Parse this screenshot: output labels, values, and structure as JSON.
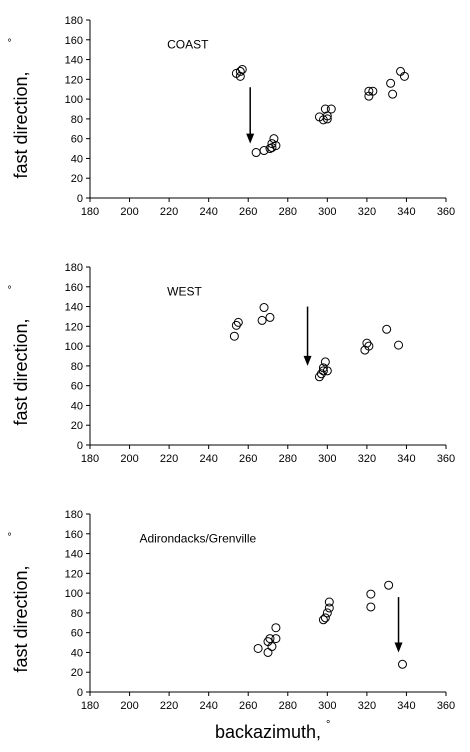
{
  "chart_data": [
    {
      "type": "scatter",
      "title": "",
      "panel_label": "COAST",
      "ylabel": "fast direction,",
      "ylabel_unit": "°",
      "xlabel": "",
      "xlim": [
        180,
        360
      ],
      "ylim": [
        0,
        180
      ],
      "x_ticks": [
        180,
        200,
        220,
        240,
        260,
        280,
        300,
        320,
        340,
        360
      ],
      "y_ticks": [
        0,
        20,
        40,
        60,
        80,
        100,
        120,
        140,
        160,
        180
      ],
      "points": [
        [
          254,
          126
        ],
        [
          256,
          128
        ],
        [
          257,
          130
        ],
        [
          256,
          123
        ],
        [
          264,
          46
        ],
        [
          268,
          48
        ],
        [
          271,
          50
        ],
        [
          272,
          55
        ],
        [
          273,
          60
        ],
        [
          274,
          53
        ],
        [
          272,
          51
        ],
        [
          296,
          82
        ],
        [
          298,
          79
        ],
        [
          299,
          90
        ],
        [
          300,
          83
        ],
        [
          302,
          90
        ],
        [
          300,
          80
        ],
        [
          321,
          103
        ],
        [
          321,
          108
        ],
        [
          323,
          108
        ],
        [
          332,
          116
        ],
        [
          333,
          105
        ],
        [
          337,
          128
        ],
        [
          339,
          123
        ]
      ],
      "arrow": {
        "x": 261,
        "y_from": 112,
        "y_to": 55
      }
    },
    {
      "type": "scatter",
      "title": "",
      "panel_label": "WEST",
      "ylabel": "fast direction,",
      "ylabel_unit": "°",
      "xlabel": "",
      "xlim": [
        180,
        360
      ],
      "ylim": [
        0,
        180
      ],
      "x_ticks": [
        180,
        200,
        220,
        240,
        260,
        280,
        300,
        320,
        340,
        360
      ],
      "y_ticks": [
        0,
        20,
        40,
        60,
        80,
        100,
        120,
        140,
        160,
        180
      ],
      "points": [
        [
          253,
          110
        ],
        [
          254,
          121
        ],
        [
          255,
          124
        ],
        [
          267,
          126
        ],
        [
          268,
          139
        ],
        [
          271,
          129
        ],
        [
          296,
          69
        ],
        [
          297,
          72
        ],
        [
          298,
          75
        ],
        [
          299,
          84
        ],
        [
          300,
          75
        ],
        [
          298,
          78
        ],
        [
          319,
          96
        ],
        [
          320,
          103
        ],
        [
          321,
          100
        ],
        [
          330,
          117
        ],
        [
          336,
          101
        ]
      ],
      "arrow": {
        "x": 290,
        "y_from": 140,
        "y_to": 80
      }
    },
    {
      "type": "scatter",
      "title": "",
      "panel_label": "Adirondacks/Grenville",
      "ylabel": "fast direction,",
      "ylabel_unit": "°",
      "xlabel": "backazimuth,",
      "xlabel_unit": "°",
      "xlim": [
        180,
        360
      ],
      "ylim": [
        0,
        180
      ],
      "x_ticks": [
        180,
        200,
        220,
        240,
        260,
        280,
        300,
        320,
        340,
        360
      ],
      "y_ticks": [
        0,
        20,
        40,
        60,
        80,
        100,
        120,
        140,
        160,
        180
      ],
      "points": [
        [
          265,
          44
        ],
        [
          270,
          40
        ],
        [
          270,
          51
        ],
        [
          271,
          54
        ],
        [
          272,
          46
        ],
        [
          274,
          54
        ],
        [
          274,
          65
        ],
        [
          298,
          73
        ],
        [
          299,
          75
        ],
        [
          300,
          80
        ],
        [
          301,
          85
        ],
        [
          301,
          91
        ],
        [
          322,
          86
        ],
        [
          322,
          99
        ],
        [
          331,
          108
        ],
        [
          338,
          28
        ]
      ],
      "arrow": {
        "x": 336,
        "y_from": 96,
        "y_to": 40
      }
    }
  ]
}
